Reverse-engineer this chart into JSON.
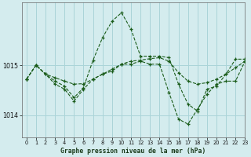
{
  "title": "Graphe pression niveau de la mer (hPa)",
  "background_color": "#d4ecee",
  "grid_color": "#aad4d8",
  "line_color": "#1a5c1a",
  "xlim": [
    -0.5,
    23
  ],
  "ylim": [
    1013.55,
    1016.25
  ],
  "yticks": [
    1014,
    1015
  ],
  "xticks": [
    0,
    1,
    2,
    3,
    4,
    5,
    6,
    7,
    8,
    9,
    10,
    11,
    12,
    13,
    14,
    15,
    16,
    17,
    18,
    19,
    20,
    21,
    22,
    23
  ],
  "series": [
    [
      1014.72,
      1015.0,
      1014.82,
      1014.75,
      1014.68,
      1014.62,
      1014.63,
      1014.72,
      1014.82,
      1014.92,
      1015.02,
      1015.08,
      1015.1,
      1015.13,
      1015.15,
      1015.08,
      1014.85,
      1014.68,
      1014.62,
      1014.65,
      1014.72,
      1014.82,
      1014.95,
      1015.08
    ],
    [
      1014.72,
      1015.0,
      1014.82,
      1014.68,
      1014.58,
      1014.35,
      1014.55,
      1015.1,
      1015.55,
      1015.88,
      1016.05,
      1015.72,
      1015.18,
      1015.18,
      1015.18,
      1015.15,
      1014.62,
      1014.22,
      1014.08,
      1014.52,
      1014.58,
      1014.82,
      1015.12,
      1015.12
    ],
    [
      1014.72,
      1015.0,
      1014.82,
      1014.62,
      1014.52,
      1014.28,
      1014.52,
      1014.72,
      1014.82,
      1014.88,
      1015.02,
      1015.02,
      1015.08,
      1015.02,
      1015.02,
      1014.45,
      1013.92,
      1013.82,
      1014.12,
      1014.42,
      1014.62,
      1014.68,
      1014.68,
      1015.08
    ]
  ]
}
